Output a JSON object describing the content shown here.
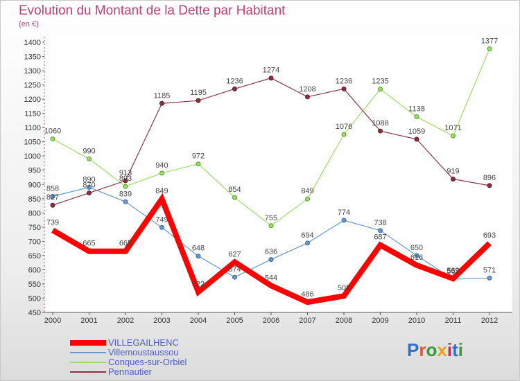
{
  "title": "Evolution du Montant de la Dette par Habitant",
  "subtitle": "(en €)",
  "logo": {
    "text": "Proxiti",
    "letters": [
      "P",
      "r",
      "o",
      "x",
      "i",
      "t",
      "i"
    ],
    "colors": [
      "#2e6fd0",
      "#e8552a",
      "#3a9a3a",
      "#e8a020",
      "#d02060",
      "#2e6fd0",
      "#3a9a3a"
    ]
  },
  "chart_data": {
    "type": "line",
    "title": "Evolution du Montant de la Dette par Habitant",
    "ylabel": "(en €)",
    "x": [
      "2000",
      "2001",
      "2002",
      "2003",
      "2004",
      "2005",
      "2006",
      "2007",
      "2008",
      "2009",
      "2010",
      "2011",
      "2012"
    ],
    "ylim": [
      450,
      1400
    ],
    "yticks": [
      450,
      500,
      550,
      600,
      650,
      700,
      750,
      800,
      850,
      900,
      950,
      1000,
      1050,
      1100,
      1150,
      1200,
      1250,
      1300,
      1350,
      1400
    ],
    "grid": false,
    "legend_position": "bottom-left",
    "series": [
      {
        "name": "VILLEGAILHENC",
        "color": "#ff0000",
        "width": 8,
        "values": [
          739,
          665,
          665,
          849,
          522,
          627,
          544,
          486,
          508,
          687,
          616,
          569,
          693
        ]
      },
      {
        "name": "Villemoustaussou",
        "color": "#6699cc",
        "width": 1.2,
        "values": [
          858,
          890,
          839,
          749,
          648,
          574,
          636,
          694,
          774,
          738,
          650,
          567,
          571
        ]
      },
      {
        "name": "Conques-sur-Orbiel",
        "color": "#99dd66",
        "width": 1.2,
        "values": [
          1060,
          990,
          893,
          940,
          972,
          854,
          755,
          849,
          1076,
          1235,
          1138,
          1071,
          1377
        ]
      },
      {
        "name": "Pennautier",
        "color": "#883344",
        "width": 1.2,
        "values": [
          827,
          870,
          913,
          1185,
          1195,
          1236,
          1274,
          1208,
          1236,
          1088,
          1059,
          919,
          896
        ]
      }
    ]
  }
}
